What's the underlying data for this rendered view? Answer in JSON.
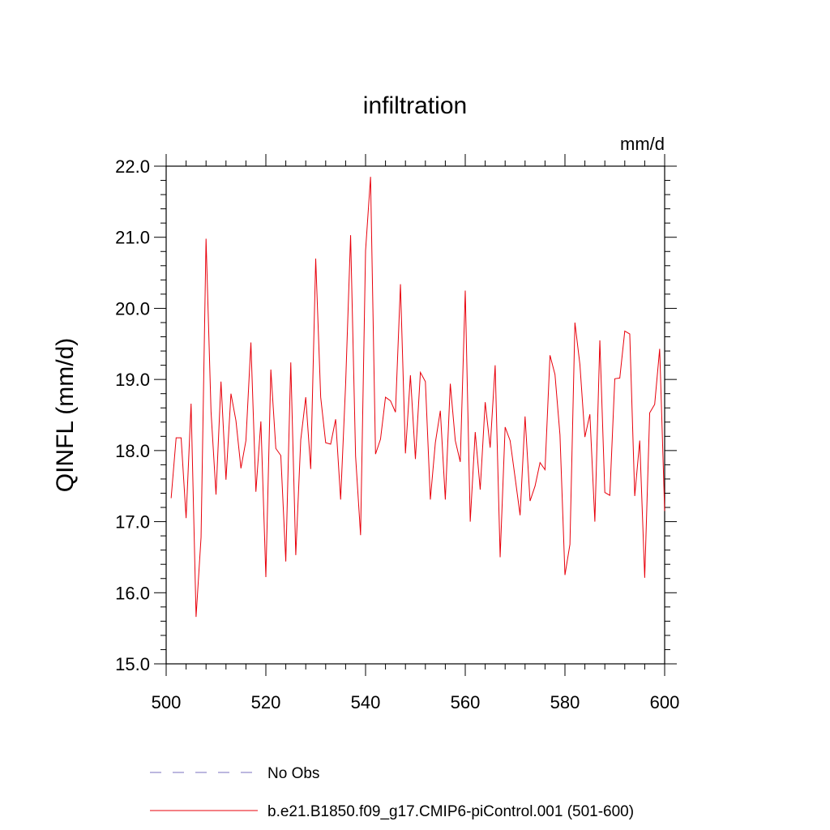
{
  "chart_data": {
    "type": "line",
    "title": "infiltration",
    "units": "mm/d",
    "xlabel": "",
    "ylabel": "QINFL  (mm/d)",
    "xlim": [
      500,
      600
    ],
    "ylim": [
      15.0,
      22.0
    ],
    "xticks": [
      500,
      520,
      540,
      560,
      580,
      600
    ],
    "xtick_labels": [
      "500",
      "520",
      "540",
      "560",
      "580",
      "600"
    ],
    "yticks": [
      15,
      16,
      17,
      18,
      19,
      20,
      21,
      22
    ],
    "ytick_labels": [
      "15.0",
      "16.0",
      "17.0",
      "18.0",
      "19.0",
      "20.0",
      "21.0",
      "22.0"
    ],
    "grid": false,
    "legend_placement": "bottom",
    "series": [
      {
        "name": "No Obs",
        "color": "#7a6fbf",
        "style": "dashed",
        "x": [],
        "values": []
      },
      {
        "name": "b.e21.B1850.f09_g17.CMIP6-piControl.001 (501-600)",
        "color": "#e8000b",
        "style": "solid",
        "x": [
          501,
          502,
          503,
          504,
          505,
          506,
          507,
          508,
          509,
          510,
          511,
          512,
          513,
          514,
          515,
          516,
          517,
          518,
          519,
          520,
          521,
          522,
          523,
          524,
          525,
          526,
          527,
          528,
          529,
          530,
          531,
          532,
          533,
          534,
          535,
          536,
          537,
          538,
          539,
          540,
          541,
          542,
          543,
          544,
          545,
          546,
          547,
          548,
          549,
          550,
          551,
          552,
          553,
          554,
          555,
          556,
          557,
          558,
          559,
          560,
          561,
          562,
          563,
          564,
          565,
          566,
          567,
          568,
          569,
          570,
          571,
          572,
          573,
          574,
          575,
          576,
          577,
          578,
          579,
          580,
          581,
          582,
          583,
          584,
          585,
          586,
          587,
          588,
          589,
          590,
          591,
          592,
          593,
          594,
          595,
          596,
          597,
          598,
          599,
          600
        ],
        "values": [
          17.33,
          18.18,
          18.18,
          17.05,
          18.66,
          15.66,
          16.78,
          20.98,
          18.55,
          17.38,
          18.97,
          17.59,
          18.8,
          18.42,
          17.75,
          18.14,
          19.52,
          17.42,
          18.41,
          16.22,
          19.14,
          18.03,
          17.93,
          16.44,
          19.24,
          16.53,
          18.15,
          18.75,
          17.74,
          20.7,
          18.75,
          18.11,
          18.09,
          18.44,
          17.31,
          18.93,
          21.03,
          17.92,
          16.81,
          20.81,
          21.85,
          17.95,
          18.16,
          18.75,
          18.7,
          18.54,
          20.34,
          17.96,
          19.06,
          17.88,
          19.1,
          18.97,
          17.31,
          18.11,
          18.56,
          17.31,
          18.94,
          18.14,
          17.84,
          20.25,
          17.0,
          18.26,
          17.45,
          18.68,
          18.04,
          19.2,
          16.5,
          18.33,
          18.14,
          17.62,
          17.09,
          18.48,
          17.29,
          17.5,
          17.83,
          17.73,
          19.34,
          19.07,
          18.22,
          16.25,
          16.68,
          19.8,
          19.21,
          18.19,
          18.51,
          17.0,
          19.55,
          17.41,
          17.37,
          19.01,
          19.02,
          19.68,
          19.64,
          17.36,
          18.14,
          16.21,
          18.53,
          18.65,
          19.43,
          17.15
        ]
      }
    ]
  }
}
